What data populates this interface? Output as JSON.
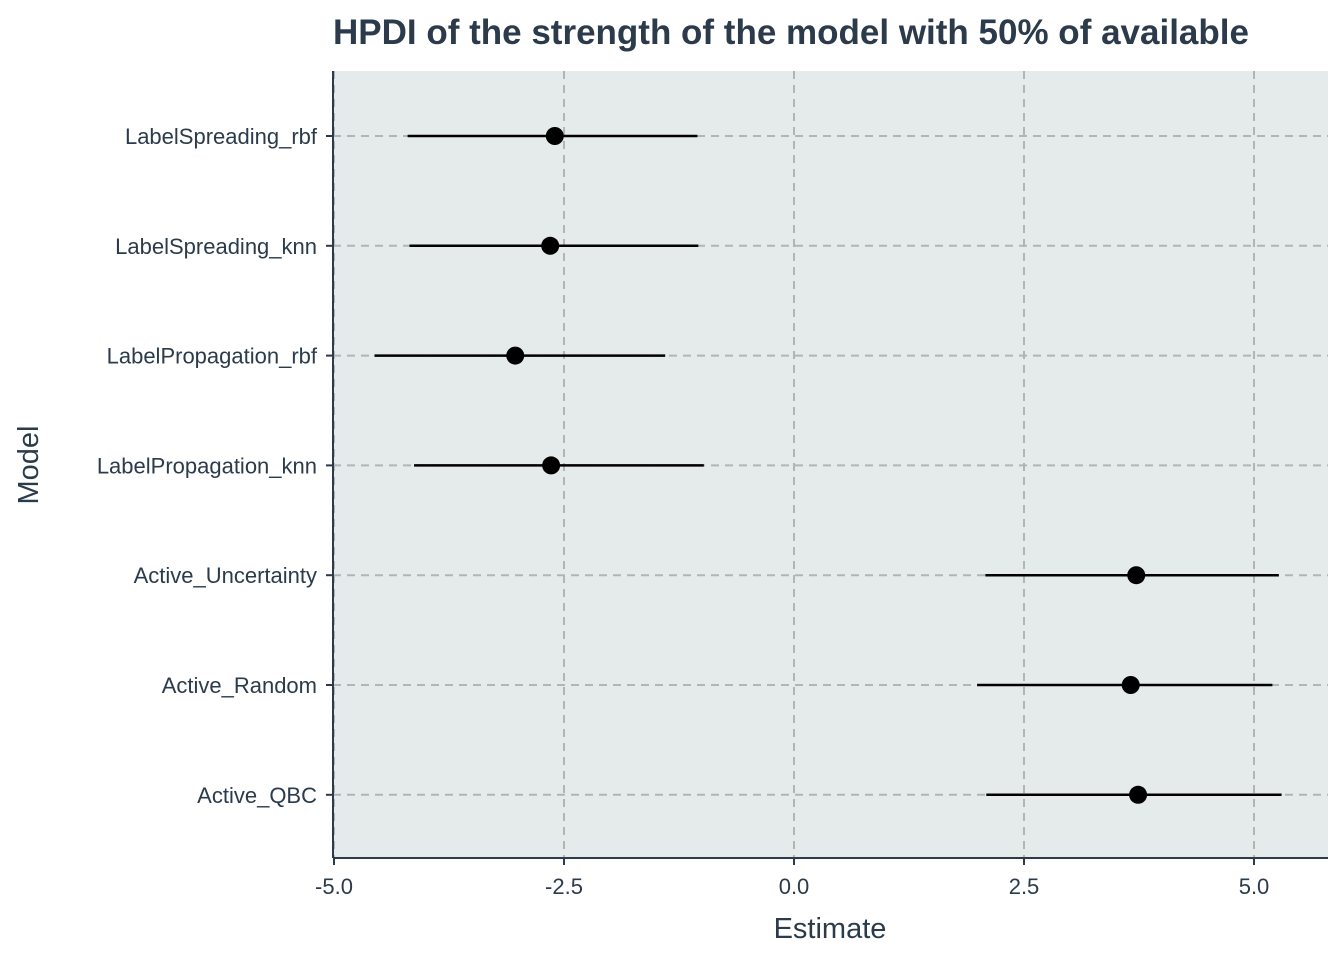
{
  "chart_data": {
    "type": "scatter",
    "subtype": "interval-dot",
    "title": "HPDI of the strength of the model with 50% of available",
    "xlabel": "Estimate",
    "ylabel": "Model",
    "xlim": [
      -5.0,
      5.8
    ],
    "x_ticks": [
      "-5.0",
      "-2.5",
      "0.0",
      "2.5",
      "5.0"
    ],
    "x_tick_values": [
      -5.0,
      -2.5,
      0.0,
      2.5,
      5.0
    ],
    "categories": [
      "LabelSpreading_rbf",
      "LabelSpreading_knn",
      "LabelPropagation_rbf",
      "LabelPropagation_knn",
      "Active_Uncertainty",
      "Active_Random",
      "Active_QBC"
    ],
    "series": [
      {
        "estimate": [
          -2.6,
          -2.65,
          -3.03,
          -2.64,
          3.72,
          3.66,
          3.74
        ],
        "lower": [
          -4.2,
          -4.18,
          -4.56,
          -4.13,
          2.08,
          1.99,
          2.09
        ],
        "upper": [
          -1.05,
          -1.04,
          -1.4,
          -0.98,
          5.27,
          5.2,
          5.3
        ]
      }
    ],
    "grid": true,
    "legend": "none",
    "colors": {
      "panel_background": "#e5ebeb",
      "grid": "#b1b5b6",
      "text": "#2b3b4b",
      "marker": "#000000",
      "axis_line": "#2b3b4b"
    }
  }
}
